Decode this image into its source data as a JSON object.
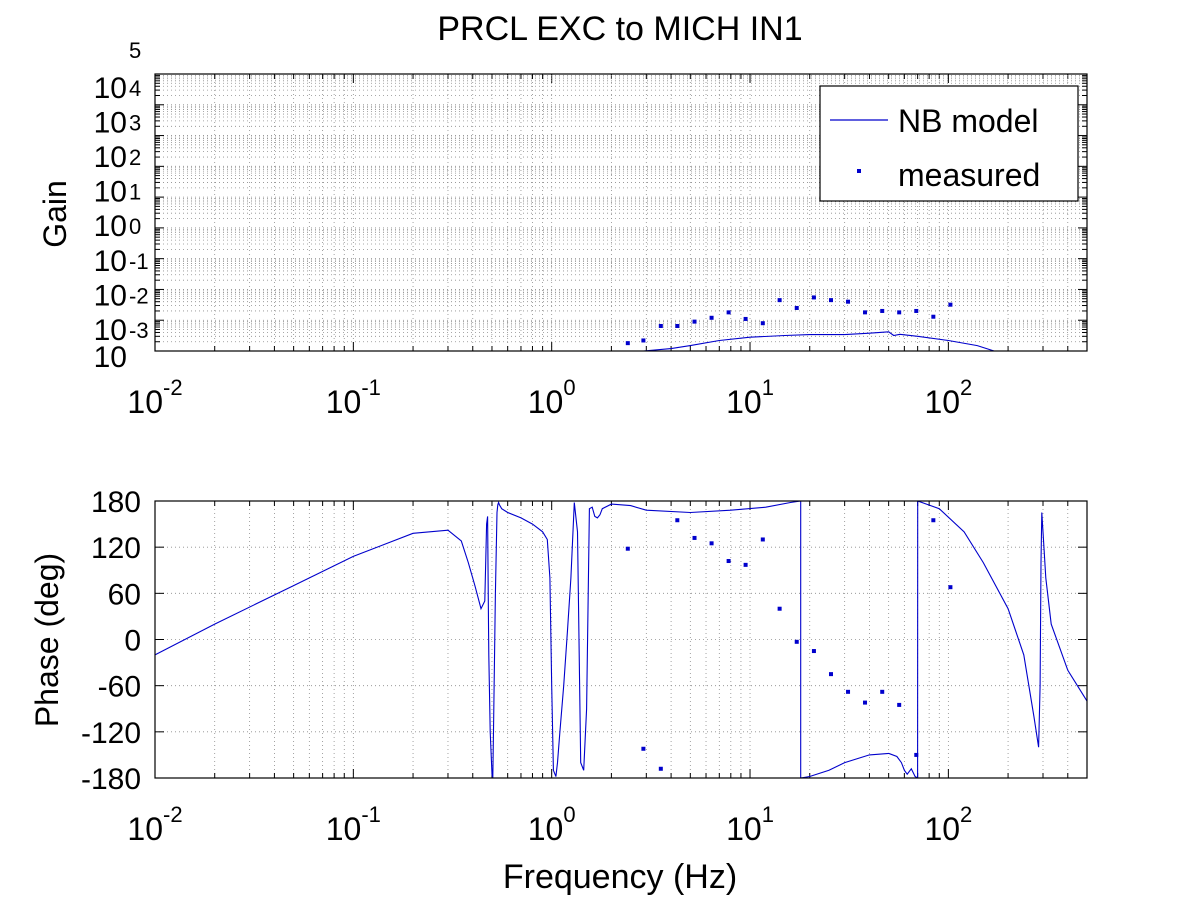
{
  "figure": {
    "title": "PRCL EXC to MICH IN1"
  },
  "colors": {
    "model": "#0000cc",
    "measured": "#0000cc",
    "axes": "#000000",
    "grid": "#8c8c8c",
    "background": "#ffffff"
  },
  "legend": {
    "placement": "top-right",
    "items": [
      {
        "label": "NB model",
        "marker": "line"
      },
      {
        "label": "measured",
        "marker": "dot"
      }
    ]
  },
  "chart_data": [
    {
      "type": "line",
      "panel": "gain",
      "xlabel": "",
      "ylabel": "Gain",
      "xscale": "log",
      "yscale": "log",
      "xlim": [
        0.01,
        500
      ],
      "ylim": [
        0.0001,
        100000
      ],
      "grid": true,
      "x_ticks": [
        {
          "base": "10",
          "exp": "-2"
        },
        {
          "base": "10",
          "exp": "-1"
        },
        {
          "base": "10",
          "exp": "0"
        },
        {
          "base": "10",
          "exp": "1"
        },
        {
          "base": "10",
          "exp": "2"
        }
      ],
      "y_ticks": [
        {
          "base": "10",
          "exp": "-3"
        },
        {
          "base": "10",
          "exp": "-2"
        },
        {
          "base": "10",
          "exp": "-1"
        },
        {
          "base": "10",
          "exp": "0"
        },
        {
          "base": "10",
          "exp": "1"
        },
        {
          "base": "10",
          "exp": "2"
        },
        {
          "base": "10",
          "exp": "3"
        },
        {
          "base": "10",
          "exp": "4"
        },
        {
          "base": "",
          "exp": "5"
        }
      ],
      "y_bottom_tick": "10",
      "series": [
        {
          "name": "NB model",
          "style": "line",
          "x": [
            2.9,
            4,
            5,
            7,
            10,
            15,
            20,
            30,
            40,
            50,
            53,
            57,
            70,
            100,
            140,
            170
          ],
          "y": [
            0.0001,
            0.00012,
            0.00015,
            0.00022,
            0.00028,
            0.00032,
            0.00034,
            0.00034,
            0.00038,
            0.00042,
            0.00032,
            0.00035,
            0.0003,
            0.00022,
            0.00015,
            0.0001
          ]
        },
        {
          "name": "measured",
          "style": "markers",
          "x": [
            2.42,
            2.9,
            3.55,
            4.3,
            5.25,
            6.4,
            7.8,
            9.5,
            11.6,
            14.1,
            17.2,
            21,
            25.6,
            31.2,
            38,
            46.4,
            56.5,
            68.9,
            84,
            102.4
          ],
          "y": [
            0.00018,
            0.00022,
            0.00065,
            0.00065,
            0.0009,
            0.0012,
            0.0018,
            0.0011,
            0.0008,
            0.0045,
            0.0025,
            0.0055,
            0.0045,
            0.004,
            0.0018,
            0.002,
            0.0018,
            0.002,
            0.0013,
            0.0032
          ]
        }
      ]
    },
    {
      "type": "line",
      "panel": "phase",
      "xlabel": "Frequency (Hz)",
      "ylabel": "Phase (deg)",
      "xscale": "log",
      "yscale": "linear",
      "xlim": [
        0.01,
        500
      ],
      "ylim": [
        -180,
        180
      ],
      "grid": true,
      "x_ticks": [
        {
          "base": "10",
          "exp": "-2"
        },
        {
          "base": "10",
          "exp": "-1"
        },
        {
          "base": "10",
          "exp": "0"
        },
        {
          "base": "10",
          "exp": "1"
        },
        {
          "base": "10",
          "exp": "2"
        }
      ],
      "y_ticks": [
        "180",
        "120",
        "60",
        "0",
        "-60",
        "-120",
        "-180"
      ],
      "series": [
        {
          "name": "NB model",
          "style": "line",
          "x": [
            0.01,
            0.02,
            0.05,
            0.1,
            0.2,
            0.3,
            0.35,
            0.38,
            0.41,
            0.44,
            0.46,
            0.47,
            0.475,
            0.48,
            0.482,
            0.49,
            0.5,
            0.505,
            0.51,
            0.52,
            0.53,
            0.535,
            0.54,
            0.545,
            0.56,
            0.6,
            0.7,
            0.8,
            0.9,
            0.95,
            0.98,
            1.0,
            1.02,
            1.05,
            1.07,
            1.1,
            1.15,
            1.2,
            1.25,
            1.3,
            1.35,
            1.4,
            1.45,
            1.5,
            1.55,
            1.6,
            1.65,
            1.7,
            1.75,
            1.8,
            2.0,
            2.5,
            3,
            5,
            8,
            12,
            16,
            18.0,
            18.01,
            20,
            25,
            30,
            40,
            50,
            55,
            58,
            60,
            62,
            65,
            68,
            70,
            70.01,
            90,
            120,
            150,
            200,
            240,
            270,
            285,
            290,
            293,
            296,
            300,
            310,
            330,
            400,
            500
          ],
          "y": [
            -20,
            20,
            70,
            108,
            138,
            142,
            128,
            100,
            70,
            40,
            50,
            150,
            160,
            20,
            -20,
            -120,
            -175,
            -180,
            -100,
            60,
            165,
            175,
            178,
            175,
            170,
            165,
            158,
            150,
            140,
            130,
            80,
            -60,
            -170,
            -178,
            -160,
            -120,
            -60,
            10,
            80,
            178,
            140,
            -160,
            -170,
            -90,
            170,
            172,
            160,
            158,
            162,
            170,
            176,
            174,
            168,
            165,
            168,
            172,
            178,
            180,
            -180,
            -178,
            -170,
            -160,
            -150,
            -148,
            -152,
            -160,
            -170,
            -175,
            -168,
            -178,
            -180,
            180,
            170,
            140,
            100,
            40,
            -20,
            -100,
            -140,
            -60,
            100,
            165,
            140,
            80,
            20,
            -40,
            -80
          ]
        },
        {
          "name": "measured",
          "style": "markers",
          "x": [
            2.42,
            2.9,
            3.55,
            4.3,
            5.25,
            6.4,
            7.8,
            9.5,
            11.6,
            14.1,
            17.2,
            21,
            25.6,
            31.2,
            38,
            46.4,
            56.5,
            68.9,
            84,
            102.4
          ],
          "y": [
            118,
            -142,
            -168,
            155,
            132,
            125,
            102,
            97,
            130,
            40,
            -3,
            -15,
            -45,
            -68,
            -82,
            -68,
            -85,
            -150,
            155,
            68
          ]
        }
      ]
    }
  ]
}
